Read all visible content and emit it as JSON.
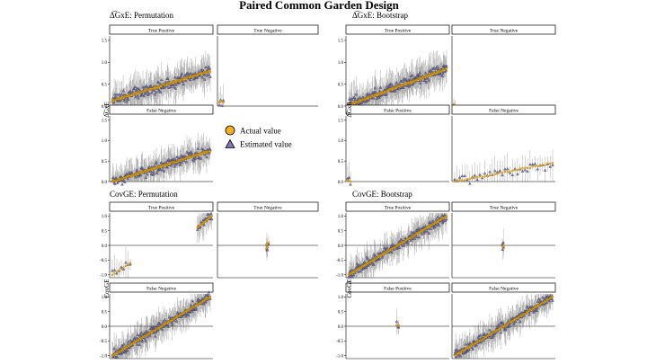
{
  "title": "Paired Common Garden Design",
  "legend": {
    "actual": "Actual value",
    "estimated": "Estimated value",
    "actual_color": "#f2b01e",
    "estimated_color": "#7d79b8"
  },
  "chart_data": [
    {
      "type": "scatter",
      "title": "Δ̅GxE: Permutation",
      "ylabel": "Δ̅GxE",
      "ylim": [
        0,
        1.6
      ],
      "yticks": [
        "0.0",
        "0.5",
        "1.0",
        "1.5"
      ],
      "facets": [
        {
          "label": "True Positive",
          "kind": "rise",
          "n": 190,
          "lo": 0.12,
          "hi": 0.8
        },
        {
          "label": "True Negative",
          "kind": "zero",
          "n": 4,
          "lo": 0.0,
          "hi": 0.12
        },
        {
          "label": "False Negative",
          "kind": "rise",
          "n": 190,
          "lo": 0.0,
          "hi": 0.75
        }
      ]
    },
    {
      "type": "scatter",
      "title": "Δ̅GxE: Bootstrap",
      "ylabel": "Δ̅GxE",
      "ylim": [
        0,
        1.6
      ],
      "yticks": [
        "0.0",
        "0.5",
        "1.0",
        "1.5"
      ],
      "facets": [
        {
          "label": "True Positive",
          "kind": "rise",
          "n": 210,
          "lo": 0.02,
          "hi": 0.85
        },
        {
          "label": "True Negative",
          "kind": "zero",
          "n": 2,
          "lo": 0.0,
          "hi": 0.05
        },
        {
          "label": "False Positive",
          "kind": "zero",
          "n": 3,
          "lo": 0.0,
          "hi": 0.05
        },
        {
          "label": "False Negative",
          "kind": "rise",
          "n": 40,
          "lo": 0.0,
          "hi": 0.45
        }
      ]
    },
    {
      "type": "scatter",
      "title": "CovGE: Permutation",
      "ylabel": "CovGE",
      "ylim": [
        -1.1,
        1.1
      ],
      "yticks": [
        "-1.0",
        "-0.5",
        "0.0",
        "0.5",
        "1.0"
      ],
      "facets": [
        {
          "label": "True Positive",
          "kind": "split",
          "n": 30,
          "lo": -1.0,
          "hi": 1.0
        },
        {
          "label": "True Negative",
          "kind": "center",
          "n": 6,
          "lo": -0.1,
          "hi": 0.1
        },
        {
          "label": "False Negative",
          "kind": "rise",
          "n": 210,
          "lo": -1.0,
          "hi": 1.0
        }
      ]
    },
    {
      "type": "scatter",
      "title": "CovGE: Bootstrap",
      "ylabel": "CovGE",
      "ylim": [
        -1.1,
        1.1
      ],
      "yticks": [
        "-1.0",
        "-0.5",
        "0.0",
        "0.5",
        "1.0"
      ],
      "facets": [
        {
          "label": "True Positive",
          "kind": "rise",
          "n": 200,
          "lo": -1.0,
          "hi": 1.0
        },
        {
          "label": "True Negative",
          "kind": "center",
          "n": 4,
          "lo": -0.05,
          "hi": 0.05
        },
        {
          "label": "False Positive",
          "kind": "center",
          "n": 3,
          "lo": -0.05,
          "hi": 0.05
        },
        {
          "label": "False Negative",
          "kind": "rise",
          "n": 200,
          "lo": -1.0,
          "hi": 1.0
        }
      ]
    }
  ]
}
